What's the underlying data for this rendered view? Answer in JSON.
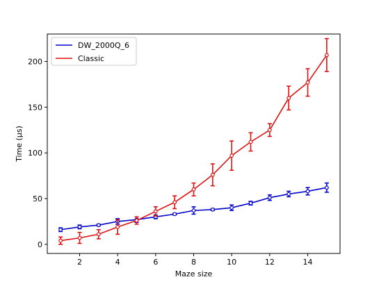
{
  "chart_data": {
    "type": "line",
    "title": "",
    "xlabel": "Maze size",
    "ylabel": "Time (µs)",
    "xlim": [
      0.3,
      15.7
    ],
    "ylim": [
      -10,
      230
    ],
    "xticks": [
      2,
      4,
      6,
      8,
      10,
      12,
      14
    ],
    "yticks": [
      0,
      50,
      100,
      150,
      200
    ],
    "grid": false,
    "legend_position": "top-left",
    "x": [
      1,
      2,
      3,
      4,
      5,
      6,
      7,
      8,
      9,
      10,
      11,
      12,
      13,
      14,
      15
    ],
    "series": [
      {
        "name": "DW_2000Q_6",
        "color": "#0000cc",
        "values": [
          16,
          19,
          21,
          25,
          27,
          30,
          33,
          37,
          38,
          40,
          45,
          51,
          55,
          58,
          62
        ],
        "errors": [
          2,
          2,
          1,
          3,
          3,
          2,
          1,
          4,
          1,
          3,
          2,
          3,
          3,
          4,
          5
        ]
      },
      {
        "name": "Classic",
        "color": "#dd1111",
        "values": [
          4,
          7,
          11,
          19,
          26,
          36,
          46,
          60,
          76,
          97,
          112,
          125,
          160,
          177,
          207
        ],
        "errors": [
          4,
          6,
          5,
          8,
          4,
          5,
          7,
          7,
          12,
          16,
          10,
          7,
          13,
          15,
          18
        ]
      }
    ]
  }
}
